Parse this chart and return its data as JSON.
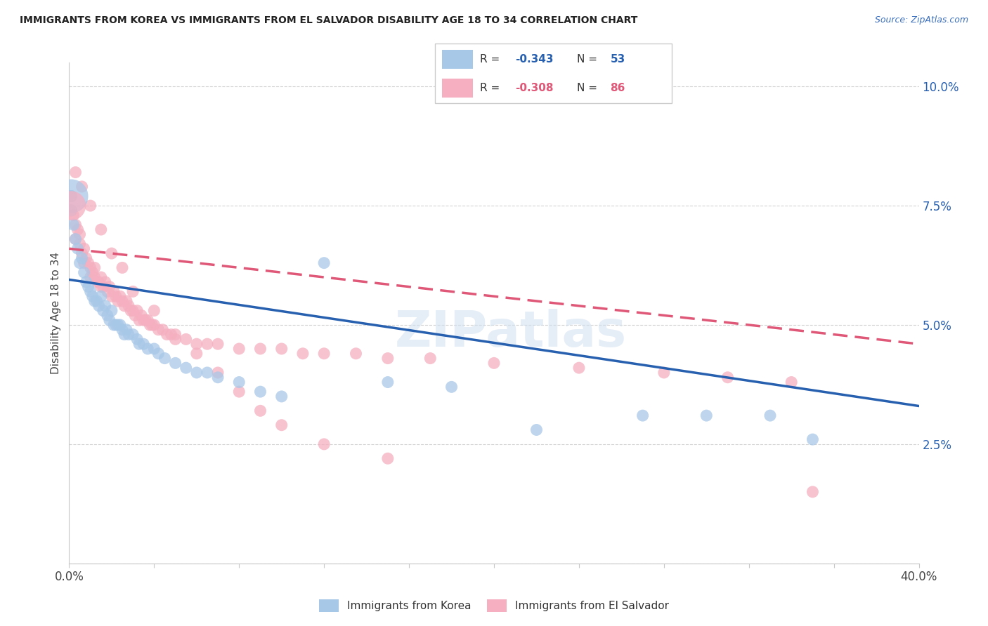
{
  "title": "IMMIGRANTS FROM KOREA VS IMMIGRANTS FROM EL SALVADOR DISABILITY AGE 18 TO 34 CORRELATION CHART",
  "source": "Source: ZipAtlas.com",
  "ylabel": "Disability Age 18 to 34",
  "xlim": [
    0.0,
    0.4
  ],
  "ylim": [
    0.0,
    0.105
  ],
  "legend_R_korea": "-0.343",
  "legend_N_korea": "53",
  "legend_R_salvador": "-0.308",
  "legend_N_salvador": "86",
  "korea_color": "#a8c8e8",
  "salvador_color": "#f5afc0",
  "korea_line_color": "#2860b0",
  "salvador_line_color": "#e05878",
  "background_color": "#ffffff",
  "grid_color": "#c8c8c8",
  "watermark": "ZIPatlas",
  "korea_line_x0": 0.0,
  "korea_line_y0": 0.0595,
  "korea_line_x1": 0.4,
  "korea_line_y1": 0.033,
  "salvador_line_x0": 0.0,
  "salvador_line_y0": 0.066,
  "salvador_line_x1": 0.4,
  "salvador_line_y1": 0.046,
  "korea_scatter_x": [
    0.001,
    0.001,
    0.002,
    0.003,
    0.004,
    0.005,
    0.006,
    0.007,
    0.008,
    0.009,
    0.01,
    0.011,
    0.012,
    0.013,
    0.014,
    0.015,
    0.016,
    0.017,
    0.018,
    0.019,
    0.02,
    0.021,
    0.022,
    0.023,
    0.024,
    0.025,
    0.026,
    0.027,
    0.028,
    0.03,
    0.032,
    0.033,
    0.035,
    0.037,
    0.04,
    0.042,
    0.045,
    0.05,
    0.055,
    0.06,
    0.065,
    0.07,
    0.08,
    0.09,
    0.1,
    0.12,
    0.15,
    0.18,
    0.22,
    0.27,
    0.3,
    0.33,
    0.35
  ],
  "korea_scatter_y": [
    0.077,
    0.074,
    0.071,
    0.068,
    0.066,
    0.063,
    0.064,
    0.061,
    0.059,
    0.058,
    0.057,
    0.056,
    0.055,
    0.055,
    0.054,
    0.056,
    0.053,
    0.054,
    0.052,
    0.051,
    0.053,
    0.05,
    0.05,
    0.05,
    0.05,
    0.049,
    0.048,
    0.049,
    0.048,
    0.048,
    0.047,
    0.046,
    0.046,
    0.045,
    0.045,
    0.044,
    0.043,
    0.042,
    0.041,
    0.04,
    0.04,
    0.039,
    0.038,
    0.036,
    0.035,
    0.063,
    0.038,
    0.037,
    0.028,
    0.031,
    0.031,
    0.031,
    0.026
  ],
  "salvador_scatter_x": [
    0.001,
    0.001,
    0.002,
    0.003,
    0.003,
    0.004,
    0.005,
    0.005,
    0.006,
    0.007,
    0.007,
    0.008,
    0.009,
    0.01,
    0.01,
    0.011,
    0.012,
    0.012,
    0.013,
    0.014,
    0.015,
    0.015,
    0.016,
    0.017,
    0.018,
    0.019,
    0.02,
    0.021,
    0.022,
    0.023,
    0.024,
    0.025,
    0.026,
    0.027,
    0.028,
    0.029,
    0.03,
    0.031,
    0.032,
    0.033,
    0.034,
    0.035,
    0.036,
    0.037,
    0.038,
    0.039,
    0.04,
    0.042,
    0.044,
    0.046,
    0.048,
    0.05,
    0.055,
    0.06,
    0.065,
    0.07,
    0.08,
    0.09,
    0.1,
    0.11,
    0.12,
    0.135,
    0.15,
    0.17,
    0.2,
    0.24,
    0.28,
    0.31,
    0.34,
    0.35,
    0.003,
    0.006,
    0.01,
    0.015,
    0.02,
    0.025,
    0.03,
    0.04,
    0.05,
    0.06,
    0.07,
    0.08,
    0.09,
    0.1,
    0.12,
    0.15
  ],
  "salvador_scatter_y": [
    0.077,
    0.074,
    0.073,
    0.071,
    0.068,
    0.07,
    0.067,
    0.069,
    0.065,
    0.066,
    0.063,
    0.064,
    0.063,
    0.062,
    0.06,
    0.061,
    0.06,
    0.062,
    0.059,
    0.059,
    0.058,
    0.06,
    0.058,
    0.059,
    0.057,
    0.058,
    0.056,
    0.057,
    0.056,
    0.055,
    0.056,
    0.055,
    0.054,
    0.055,
    0.054,
    0.053,
    0.053,
    0.052,
    0.053,
    0.051,
    0.052,
    0.051,
    0.051,
    0.051,
    0.05,
    0.05,
    0.05,
    0.049,
    0.049,
    0.048,
    0.048,
    0.047,
    0.047,
    0.046,
    0.046,
    0.046,
    0.045,
    0.045,
    0.045,
    0.044,
    0.044,
    0.044,
    0.043,
    0.043,
    0.042,
    0.041,
    0.04,
    0.039,
    0.038,
    0.015,
    0.082,
    0.079,
    0.075,
    0.07,
    0.065,
    0.062,
    0.057,
    0.053,
    0.048,
    0.044,
    0.04,
    0.036,
    0.032,
    0.029,
    0.025,
    0.022
  ]
}
